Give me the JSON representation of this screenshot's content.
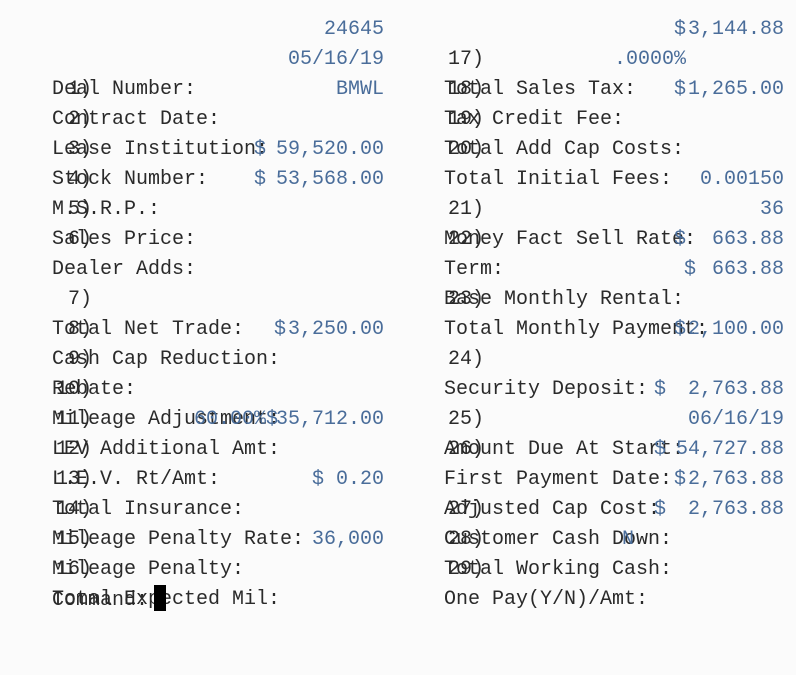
{
  "left": [
    {
      "num": "",
      "label": "Deal Number:",
      "value": "24645"
    },
    {
      "num": "1)",
      "label": "Contract Date:",
      "value": "05/16/19"
    },
    {
      "num": "2)",
      "label": "Lease Institution:",
      "value": "BMWL"
    },
    {
      "num": "3)",
      "label": "Stock Number:",
      "value": ""
    },
    {
      "num": "4)",
      "label": "M.S.R.P.:",
      "cur": "$",
      "value": "59,520.00"
    },
    {
      "num": "5)",
      "label": "Sales Price:",
      "cur": "$",
      "value": "53,568.00"
    },
    {
      "num": "6)",
      "label": "Dealer Adds:",
      "value": ""
    },
    {
      "num": "7)",
      "label": "Total Net Trade:",
      "value": ""
    },
    {
      "num": "8)",
      "label": "Cash Cap Reduction:",
      "value": ""
    },
    {
      "num": "9)",
      "label": "Rebate:",
      "cur": "$",
      "value": "3,250.00"
    },
    {
      "num": "10)",
      "label": "Mileage Adjustment:",
      "value": ""
    },
    {
      "num": "11)",
      "label": "LEV Additional Amt:",
      "value": ""
    },
    {
      "num": "12)",
      "label": "L.E.V. Rt/Amt:",
      "pct": "60.00%$",
      "value": "35,712.00"
    },
    {
      "num": "13)",
      "label": "Total Insurance:",
      "value": ""
    },
    {
      "num": "14)",
      "label": "Mileage Penalty Rate:",
      "value": "$ 0.20"
    },
    {
      "num": "15)",
      "label": "Mileage Penalty:",
      "value": ""
    },
    {
      "num": "16)",
      "label": "Total Expected Mil:",
      "value": "36,000"
    }
  ],
  "right": [
    {
      "num": "17)",
      "label": "Total Sales Tax:",
      "cur": "$",
      "value": "3,144.88"
    },
    {
      "num": "18)",
      "label": "Tax Credit Fee:",
      "value": ".0000%"
    },
    {
      "num": "19)",
      "label": "Total Add Cap Costs:",
      "cur": "$",
      "value": "1,265.00"
    },
    {
      "num": "20)",
      "label": "Total Initial Fees:",
      "value": ""
    },
    {
      "num": "21)",
      "label": "Money Fact Sell Rate:",
      "value": "0.00150"
    },
    {
      "num": "22)",
      "label": "Term:",
      "value": "36"
    },
    {
      "num": "",
      "label": "Base Monthly Rental:",
      "cur": "$",
      "value": "663.88"
    },
    {
      "num": "23)",
      "label": "Total Monthly Payment:",
      "cur": "$",
      "value": "663.88"
    },
    {
      "num": "24)",
      "label": "Security Deposit:",
      "cur": "$",
      "value": "2,100.00"
    },
    {
      "num": "25)",
      "label": "Amount Due At Start:",
      "cur": "$",
      "value": "2,763.88"
    },
    {
      "num": "26)",
      "label": "First Payment Date:",
      "value": "06/16/19"
    },
    {
      "num": "",
      "label": "Adjusted Cap Cost:",
      "cur": "$",
      "value": "54,727.88"
    },
    {
      "num": "27)",
      "label": "Customer Cash Down:",
      "cur": "$",
      "value": "2,763.88"
    },
    {
      "num": "28)",
      "label": "Total Working Cash:",
      "cur": "$",
      "value": "2,763.88"
    },
    {
      "num": "29)",
      "label": "One Pay(Y/N)/Amt:",
      "value": "N"
    }
  ],
  "command": {
    "label": "Command:",
    "value": ""
  }
}
